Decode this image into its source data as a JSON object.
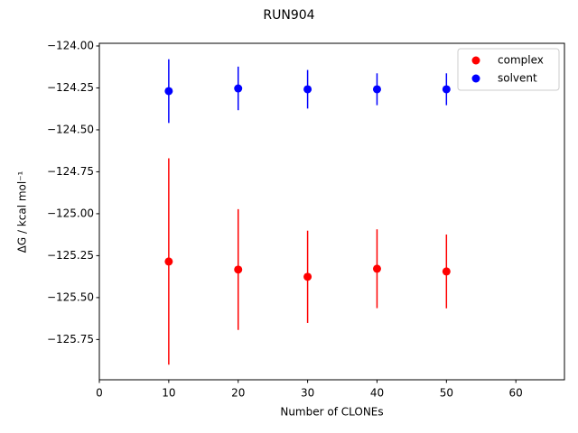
{
  "chart_data": {
    "type": "errorbar-scatter",
    "title": "RUN904",
    "x_label": "Number of CLONEs",
    "y_label": "ΔG / kcal mol⁻¹",
    "x": [
      10,
      20,
      30,
      40,
      50
    ],
    "series": [
      {
        "name": "complex",
        "color": "#ff0000",
        "values": [
          -125.285,
          -125.333,
          -125.376,
          -125.328,
          -125.344
        ],
        "errors": [
          0.615,
          0.36,
          0.275,
          0.235,
          0.22
        ]
      },
      {
        "name": "solvent",
        "color": "#0000ff",
        "values": [
          -124.269,
          -124.253,
          -124.258,
          -124.258,
          -124.258
        ],
        "errors": [
          0.19,
          0.13,
          0.115,
          0.095,
          0.095
        ]
      }
    ],
    "xlim": [
      0,
      67
    ],
    "xticks": [
      0,
      10,
      20,
      30,
      40,
      50,
      60
    ],
    "ylim": [
      -125.99,
      -123.984
    ],
    "yticks": [
      {
        "value": -124.0,
        "label": "−124.00"
      },
      {
        "value": -124.25,
        "label": "−124.25"
      },
      {
        "value": -124.5,
        "label": "−124.50"
      },
      {
        "value": -124.75,
        "label": "−124.75"
      },
      {
        "value": -125.0,
        "label": "−125.00"
      },
      {
        "value": -125.25,
        "label": "−125.25"
      },
      {
        "value": -125.5,
        "label": "−125.50"
      },
      {
        "value": -125.75,
        "label": "−125.75"
      }
    ],
    "legend": "upper right",
    "grid": false
  }
}
